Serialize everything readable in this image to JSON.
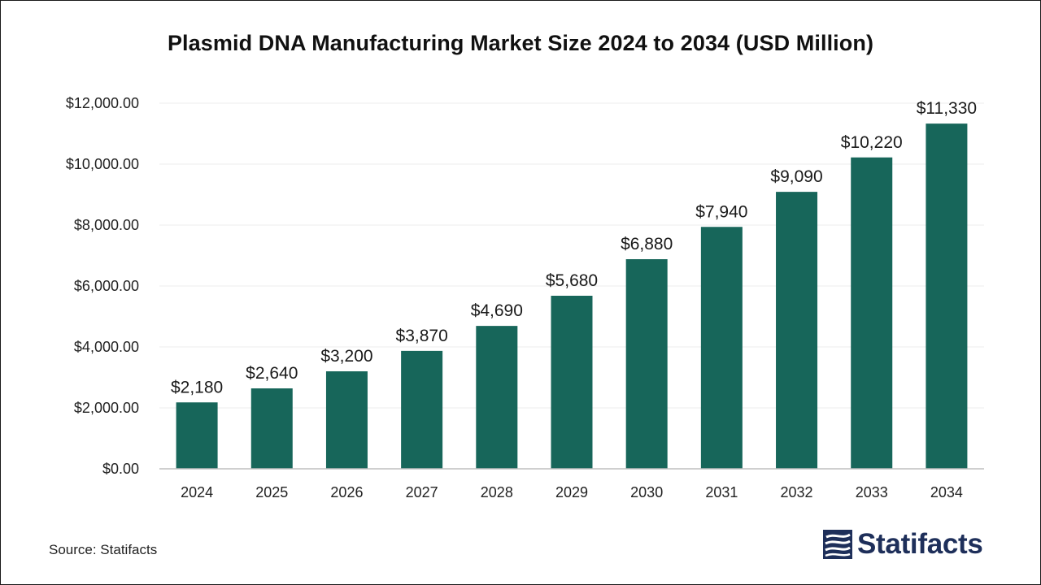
{
  "chart_data": {
    "type": "bar",
    "title": "Plasmid DNA Manufacturing Market Size 2024 to 2034 (USD Million)",
    "categories": [
      "2024",
      "2025",
      "2026",
      "2027",
      "2028",
      "2029",
      "2030",
      "2031",
      "2032",
      "2033",
      "2034"
    ],
    "values": [
      2180,
      2640,
      3200,
      3870,
      4690,
      5680,
      6880,
      7940,
      9090,
      10220,
      11330
    ],
    "data_labels": [
      "$2,180",
      "$2,640",
      "$3,200",
      "$3,870",
      "$4,690",
      "$5,680",
      "$6,880",
      "$7,940",
      "$9,090",
      "$10,220",
      "$11,330"
    ],
    "y_ticks": [
      0,
      2000,
      4000,
      6000,
      8000,
      10000,
      12000
    ],
    "y_tick_labels": [
      "$0.00",
      "$2,000.00",
      "$4,000.00",
      "$6,000.00",
      "$8,000.00",
      "$10,000.00",
      "$12,000.00"
    ],
    "ylim": [
      0,
      12000
    ],
    "bar_color": "#17665a",
    "grid": true,
    "legend": "none"
  },
  "source": "Source: Statifacts",
  "logo": {
    "text": "Statifacts",
    "icon": "statifacts-logo-icon",
    "color": "#1e2f5a"
  }
}
